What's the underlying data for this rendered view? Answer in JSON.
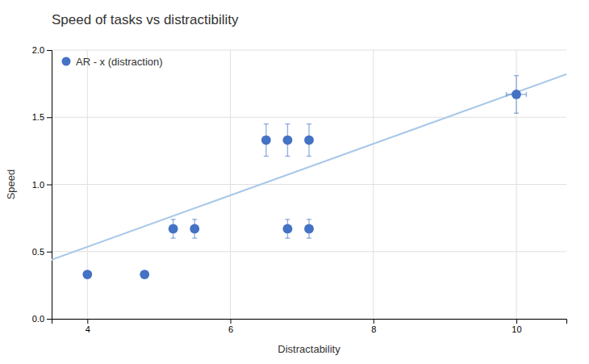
{
  "chart_data": {
    "type": "scatter",
    "title": "Speed of tasks vs distractibility",
    "xlabel": "Distractability",
    "ylabel": "Speed",
    "x": [
      4.0,
      4.8,
      5.2,
      5.5,
      6.5,
      6.8,
      7.1,
      6.8,
      7.1,
      10.0
    ],
    "series": [
      {
        "name": "AR - x (distraction)",
        "color": "#4472C4",
        "marker": "circle",
        "values": [
          0.33,
          0.33,
          0.67,
          0.67,
          1.33,
          1.33,
          1.33,
          0.67,
          0.67,
          1.67
        ],
        "yerr": [
          0.02,
          0.02,
          0.07,
          0.07,
          0.12,
          0.12,
          0.12,
          0.07,
          0.07,
          0.14
        ],
        "xerr": [
          0.0,
          0.0,
          0.0,
          0.0,
          0.0,
          0.0,
          0.0,
          0.0,
          0.0,
          0.14
        ]
      }
    ],
    "trendline": {
      "x": [
        3.5,
        10.7
      ],
      "values": [
        0.44,
        1.82
      ],
      "color": "#A8C8E8"
    },
    "xlim": [
      3.5,
      10.7
    ],
    "ylim": [
      0.0,
      2.0
    ],
    "xticks": [
      4,
      6,
      8,
      10
    ],
    "yticks": [
      {
        "value": 0.0,
        "label": "0.0"
      },
      0.5,
      {
        "value": 1.0,
        "label": "1.0"
      },
      1.5,
      {
        "value": 2.0,
        "label": "2.0"
      }
    ],
    "grid": true,
    "legend": "upper left"
  }
}
